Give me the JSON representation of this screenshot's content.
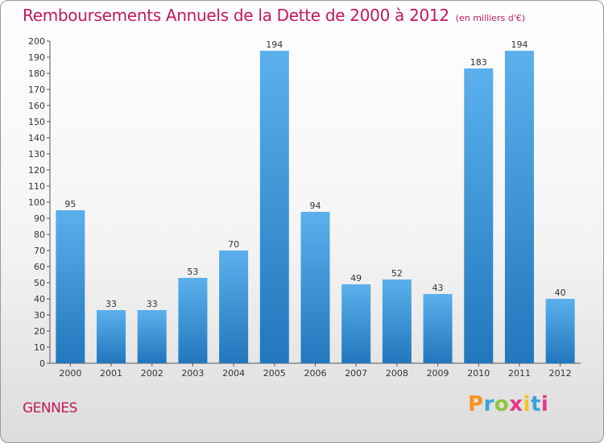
{
  "header": {
    "title": "Remboursements Annuels de la Dette de 2000 à 2012",
    "unit": "(en milliers d'€)"
  },
  "footer": {
    "commune": "GENNES",
    "logo": [
      "P",
      "r",
      "o",
      "x",
      "i",
      "t",
      "i"
    ],
    "logo_colors": [
      "#f7931e",
      "#3aa3d8",
      "#8cc63f",
      "#e8378a",
      "#f7c21e",
      "#3aa3d8",
      "#e8378a"
    ]
  },
  "chart_data": {
    "type": "bar",
    "title": "Remboursements Annuels de la Dette de 2000 à 2012",
    "categories": [
      "2000",
      "2001",
      "2002",
      "2003",
      "2004",
      "2005",
      "2006",
      "2007",
      "2008",
      "2009",
      "2010",
      "2011",
      "2012"
    ],
    "values": [
      95,
      33,
      33,
      53,
      70,
      194,
      94,
      49,
      52,
      43,
      183,
      194,
      40
    ],
    "xlabel": "",
    "ylabel": "",
    "ylim": [
      0,
      200
    ],
    "yticks": [
      0,
      10,
      20,
      30,
      40,
      50,
      60,
      70,
      80,
      90,
      100,
      110,
      120,
      130,
      140,
      150,
      160,
      170,
      180,
      190,
      200
    ],
    "grid": false,
    "legend": "none",
    "bar_color": "#3b93d8"
  }
}
